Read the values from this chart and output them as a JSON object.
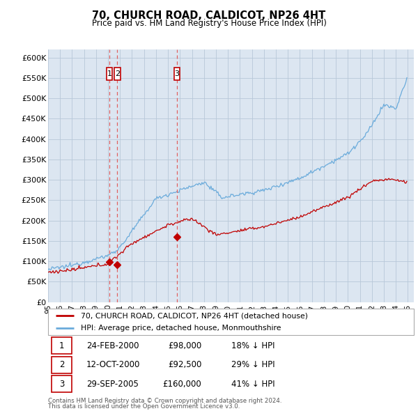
{
  "title": "70, CHURCH ROAD, CALDICOT, NP26 4HT",
  "subtitle": "Price paid vs. HM Land Registry's House Price Index (HPI)",
  "ylim": [
    0,
    620000
  ],
  "xlim_start": 1995.0,
  "xlim_end": 2025.5,
  "legend_line1": "70, CHURCH ROAD, CALDICOT, NP26 4HT (detached house)",
  "legend_line2": "HPI: Average price, detached house, Monmouthshire",
  "transactions": [
    {
      "num": 1,
      "date": "24-FEB-2000",
      "price": 98000,
      "pct": "18%",
      "direction": "↓",
      "year": 2000.12
    },
    {
      "num": 2,
      "date": "12-OCT-2000",
      "price": 92500,
      "pct": "29%",
      "direction": "↓",
      "year": 2000.78
    },
    {
      "num": 3,
      "date": "29-SEP-2005",
      "price": 160000,
      "pct": "41%",
      "direction": "↓",
      "year": 2005.74
    }
  ],
  "footnote1": "Contains HM Land Registry data © Crown copyright and database right 2024.",
  "footnote2": "This data is licensed under the Open Government Licence v3.0.",
  "hpi_color": "#6aabdb",
  "price_color": "#c00000",
  "background_color": "#dce6f1",
  "plot_bg_color": "#ffffff",
  "grid_color": "#b8c8d8",
  "vline_color": "#e06060",
  "box_color": "#c00000",
  "yticks": [
    0,
    50000,
    100000,
    150000,
    200000,
    250000,
    300000,
    350000,
    400000,
    450000,
    500000,
    550000,
    600000
  ],
  "ytick_labels": [
    "£0",
    "£50K",
    "£100K",
    "£150K",
    "£200K",
    "£250K",
    "£300K",
    "£350K",
    "£400K",
    "£450K",
    "£500K",
    "£550K",
    "£600K"
  ]
}
